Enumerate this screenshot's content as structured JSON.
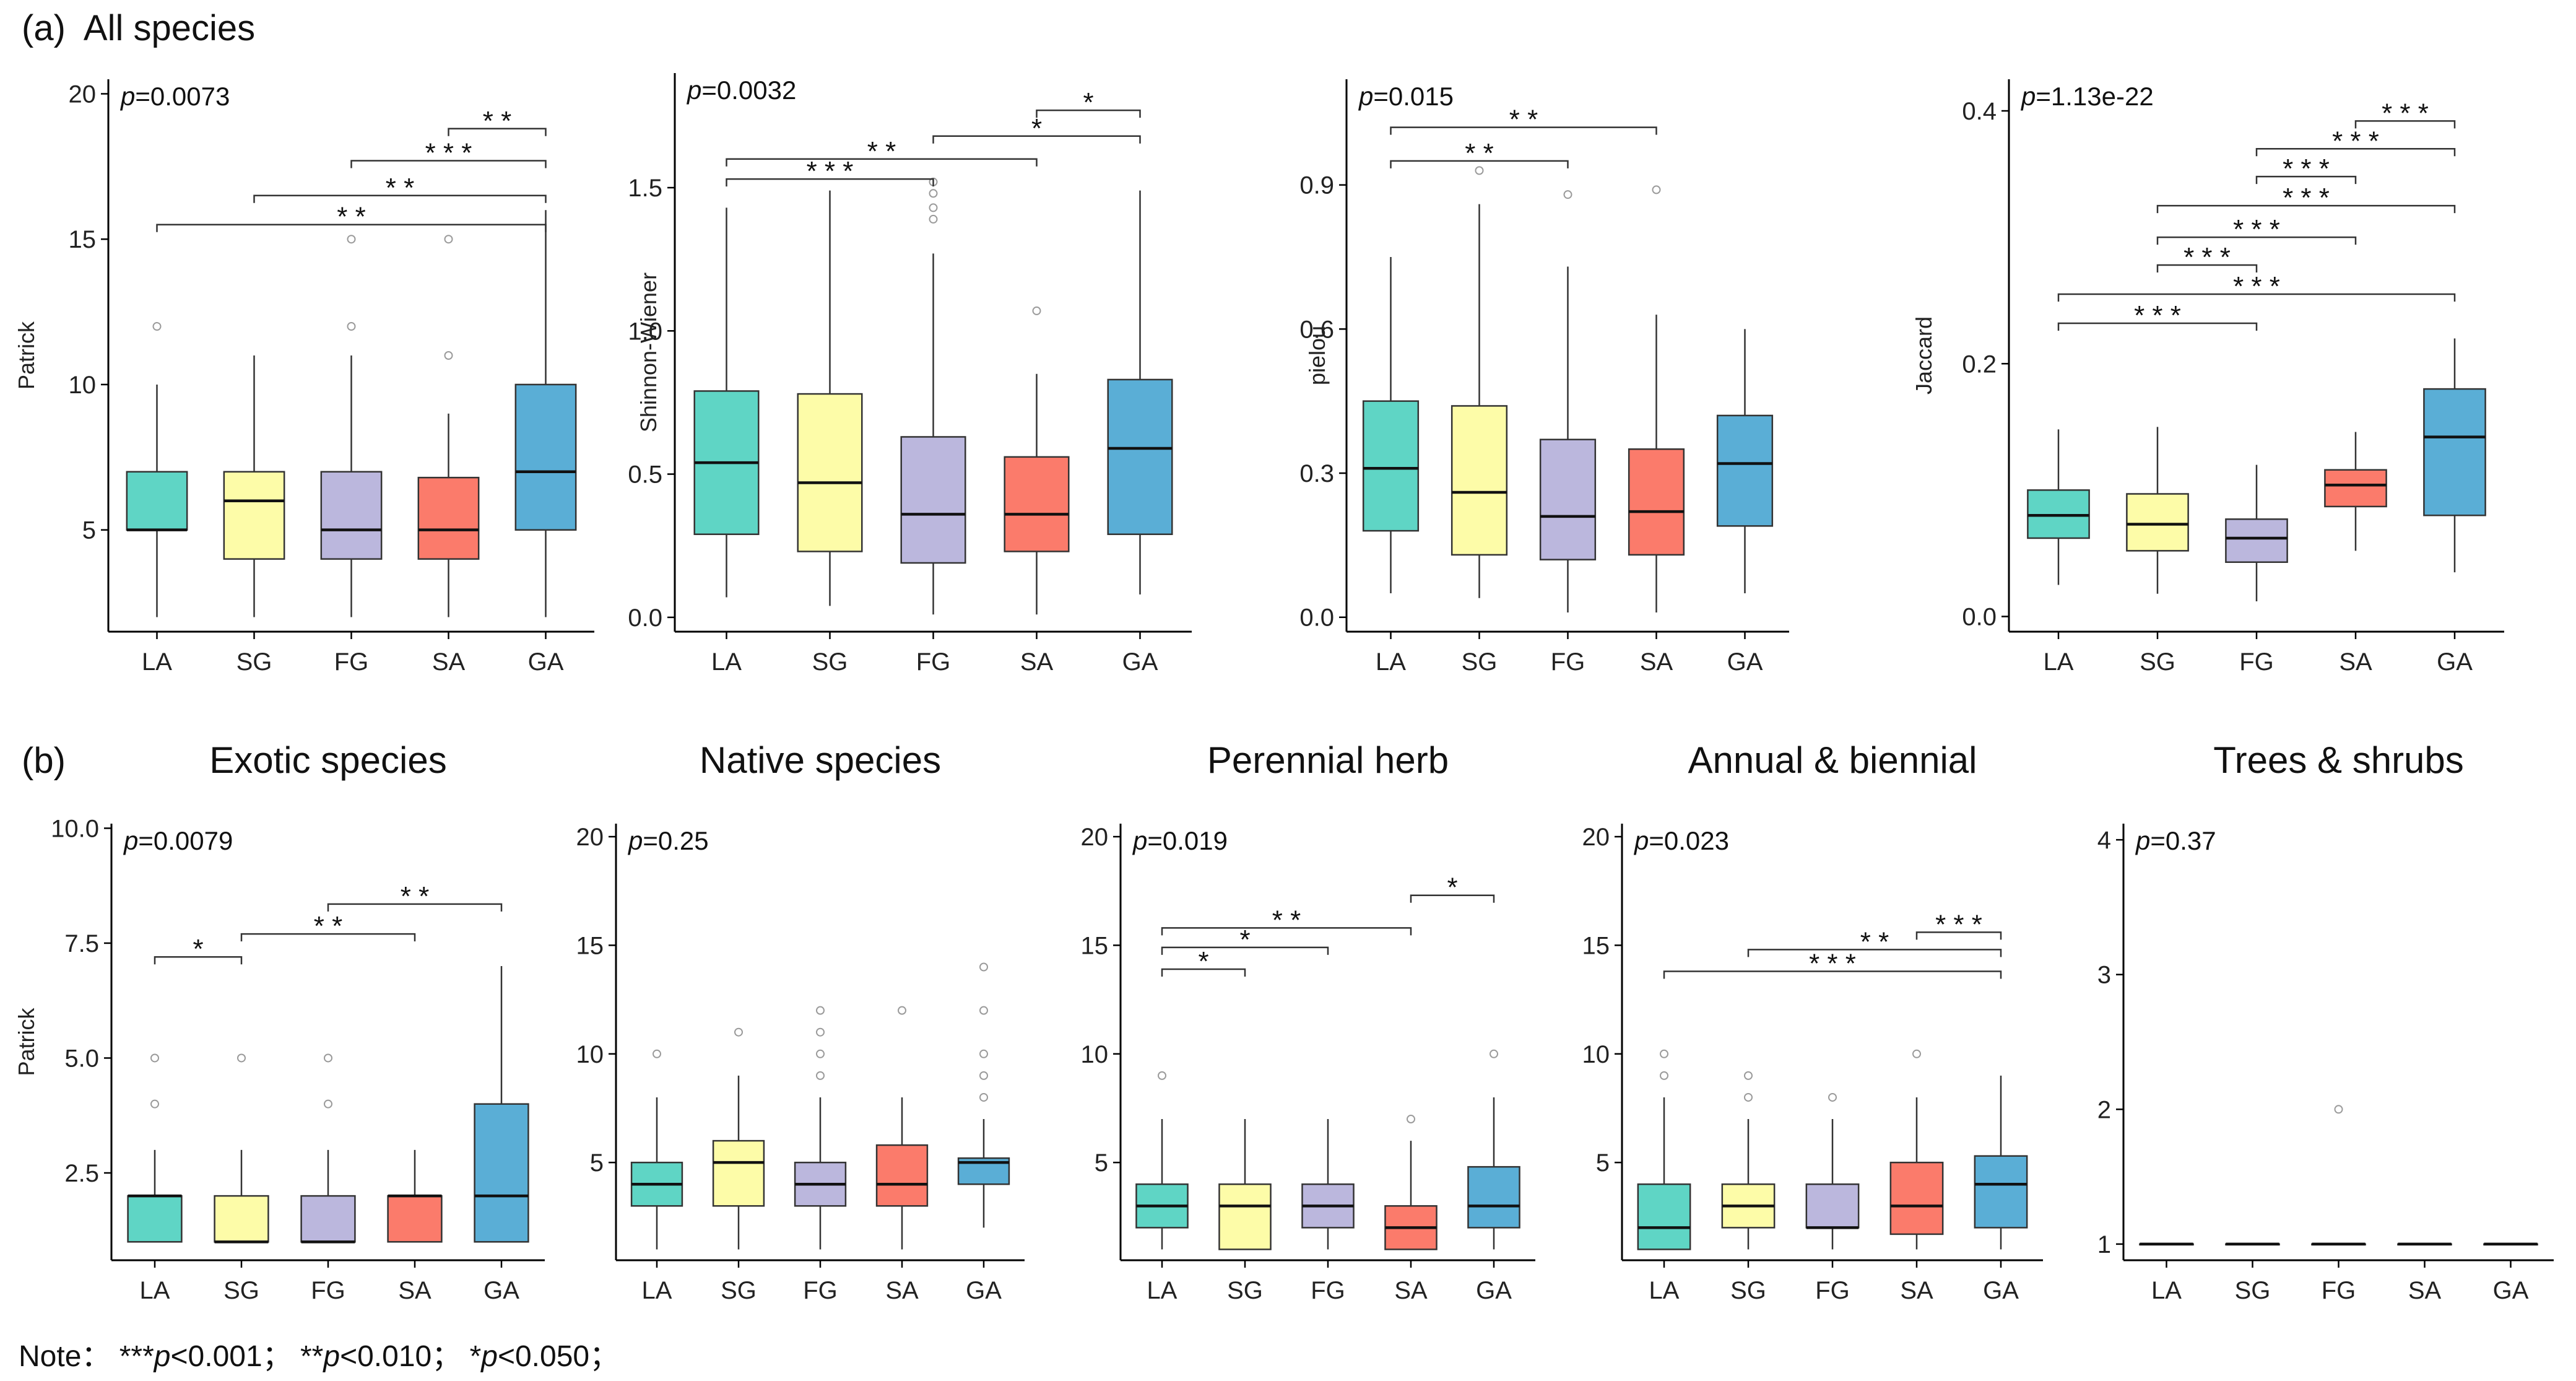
{
  "panel_a_label": "(a)",
  "panel_a_title": "All species",
  "panel_b_label": "(b)",
  "note": {
    "prefix": "Note：",
    "items": [
      {
        "stars": "***",
        "p": "p",
        "rest": "<0.001；"
      },
      {
        "stars": "**",
        "p": "p",
        "rest": "<0.010；"
      },
      {
        "stars": "*",
        "p": "p",
        "rest": "<0.050；"
      }
    ]
  },
  "colors": {
    "LA": "#5fd5c5",
    "SG": "#fdfca8",
    "FG": "#bbb7dd",
    "SA": "#fb7b6b",
    "GA": "#5aaed6"
  },
  "chart_data": [
    {
      "type": "box",
      "panel": "a",
      "title": "",
      "ylabel": "Patrick",
      "pval": "p=0.0073",
      "categories": [
        "LA",
        "SG",
        "FG",
        "SA",
        "GA"
      ],
      "ylim": [
        1.5,
        20.5
      ],
      "yticks": [
        5,
        10,
        15,
        20
      ],
      "ytick_labels": [
        "5",
        "10",
        "15",
        "20"
      ],
      "boxes": [
        {
          "min": 2,
          "q1": 5,
          "median": 5,
          "q3": 7,
          "max": 10,
          "outliers": [
            12
          ]
        },
        {
          "min": 2,
          "q1": 4,
          "median": 6,
          "q3": 7,
          "max": 11,
          "outliers": []
        },
        {
          "min": 2,
          "q1": 4,
          "median": 5,
          "q3": 7,
          "max": 11,
          "outliers": [
            12,
            15
          ]
        },
        {
          "min": 2,
          "q1": 4,
          "median": 5,
          "q3": 6.8,
          "max": 9,
          "outliers": [
            11,
            15
          ]
        },
        {
          "min": 2,
          "q1": 5,
          "median": 7,
          "q3": 10,
          "max": 16,
          "outliers": []
        }
      ],
      "brackets": [
        {
          "from": "SA",
          "to": "GA",
          "y": 18.8,
          "label": "* *"
        },
        {
          "from": "FG",
          "to": "GA",
          "y": 17.7,
          "label": "* * *"
        },
        {
          "from": "SG",
          "to": "GA",
          "y": 16.5,
          "label": "* *"
        },
        {
          "from": "LA",
          "to": "GA",
          "y": 15.5,
          "label": "* *"
        }
      ]
    },
    {
      "type": "box",
      "panel": "a",
      "title": "",
      "ylabel": "Shinnon-Wiener",
      "pval": "p=0.0032",
      "categories": [
        "LA",
        "SG",
        "FG",
        "SA",
        "GA"
      ],
      "ylim": [
        -0.05,
        1.9
      ],
      "yticks": [
        0,
        0.5,
        1.0,
        1.5
      ],
      "ytick_labels": [
        "0.0",
        "0.5",
        "1.0",
        "1.5"
      ],
      "boxes": [
        {
          "min": 0.07,
          "q1": 0.29,
          "median": 0.54,
          "q3": 0.79,
          "max": 1.43,
          "outliers": []
        },
        {
          "min": 0.04,
          "q1": 0.23,
          "median": 0.47,
          "q3": 0.78,
          "max": 1.49,
          "outliers": []
        },
        {
          "min": 0.01,
          "q1": 0.19,
          "median": 0.36,
          "q3": 0.63,
          "max": 1.27,
          "outliers": [
            1.39,
            1.43,
            1.48,
            1.52
          ]
        },
        {
          "min": 0.01,
          "q1": 0.23,
          "median": 0.36,
          "q3": 0.56,
          "max": 0.85,
          "outliers": [
            1.07
          ]
        },
        {
          "min": 0.08,
          "q1": 0.29,
          "median": 0.59,
          "q3": 0.83,
          "max": 1.49,
          "outliers": []
        }
      ],
      "brackets": [
        {
          "from": "SA",
          "to": "GA",
          "y": 1.77,
          "label": "*"
        },
        {
          "from": "FG",
          "to": "GA",
          "y": 1.68,
          "label": "*"
        },
        {
          "from": "LA",
          "to": "SA",
          "y": 1.6,
          "label": "* *"
        },
        {
          "from": "LA",
          "to": "FG",
          "y": 1.53,
          "label": "* * *"
        }
      ]
    },
    {
      "type": "box",
      "panel": "a",
      "title": "",
      "ylabel": "pielou",
      "pval": "p=0.015",
      "categories": [
        "LA",
        "SG",
        "FG",
        "SA",
        "GA"
      ],
      "ylim": [
        -0.03,
        1.12
      ],
      "yticks": [
        0,
        0.3,
        0.6,
        0.9
      ],
      "ytick_labels": [
        "0.0",
        "0.3",
        "0.6",
        "0.9"
      ],
      "boxes": [
        {
          "min": 0.05,
          "q1": 0.18,
          "median": 0.31,
          "q3": 0.45,
          "max": 0.75,
          "outliers": []
        },
        {
          "min": 0.04,
          "q1": 0.13,
          "median": 0.26,
          "q3": 0.44,
          "max": 0.86,
          "outliers": [
            0.93
          ]
        },
        {
          "min": 0.01,
          "q1": 0.12,
          "median": 0.21,
          "q3": 0.37,
          "max": 0.73,
          "outliers": [
            0.88
          ]
        },
        {
          "min": 0.01,
          "q1": 0.13,
          "median": 0.22,
          "q3": 0.35,
          "max": 0.63,
          "outliers": [
            0.89
          ]
        },
        {
          "min": 0.05,
          "q1": 0.19,
          "median": 0.32,
          "q3": 0.42,
          "max": 0.6,
          "outliers": []
        }
      ],
      "brackets": [
        {
          "from": "LA",
          "to": "SA",
          "y": 1.02,
          "label": "* *"
        },
        {
          "from": "LA",
          "to": "FG",
          "y": 0.95,
          "label": "* *"
        }
      ]
    },
    {
      "type": "box",
      "panel": "a",
      "title": "",
      "ylabel": "Jaccard",
      "pval": "p=1.13e-22",
      "categories": [
        "LA",
        "SG",
        "FG",
        "SA",
        "GA"
      ],
      "ylim": [
        -0.012,
        0.425
      ],
      "yticks": [
        0,
        0.2,
        0.4
      ],
      "ytick_labels": [
        "0.0",
        "0.2",
        "0.4"
      ],
      "boxes": [
        {
          "min": 0.025,
          "q1": 0.062,
          "median": 0.08,
          "q3": 0.1,
          "max": 0.148,
          "outliers": []
        },
        {
          "min": 0.018,
          "q1": 0.052,
          "median": 0.073,
          "q3": 0.097,
          "max": 0.15,
          "outliers": []
        },
        {
          "min": 0.012,
          "q1": 0.043,
          "median": 0.062,
          "q3": 0.077,
          "max": 0.12,
          "outliers": []
        },
        {
          "min": 0.052,
          "q1": 0.087,
          "median": 0.104,
          "q3": 0.116,
          "max": 0.146,
          "outliers": []
        },
        {
          "min": 0.035,
          "q1": 0.08,
          "median": 0.142,
          "q3": 0.18,
          "max": 0.22,
          "outliers": []
        }
      ],
      "brackets": [
        {
          "from": "SA",
          "to": "GA",
          "y": 0.392,
          "label": "* * *"
        },
        {
          "from": "FG",
          "to": "GA",
          "y": 0.37,
          "label": "* * *"
        },
        {
          "from": "FG",
          "to": "SA",
          "y": 0.348,
          "label": "* * *"
        },
        {
          "from": "SG",
          "to": "GA",
          "y": 0.325,
          "label": "* * *"
        },
        {
          "from": "SG",
          "to": "SA",
          "y": 0.3,
          "label": "* * *"
        },
        {
          "from": "SG",
          "to": "FG",
          "y": 0.278,
          "label": "* * *"
        },
        {
          "from": "LA",
          "to": "GA",
          "y": 0.255,
          "label": "* * *"
        },
        {
          "from": "LA",
          "to": "FG",
          "y": 0.232,
          "label": "* * *"
        }
      ]
    },
    {
      "type": "box",
      "panel": "b",
      "title": "Exotic species",
      "ylabel": "Patrick",
      "pval": "p=0.0079",
      "categories": [
        "LA",
        "SG",
        "FG",
        "SA",
        "GA"
      ],
      "ylim": [
        0.6,
        10.1
      ],
      "yticks": [
        2.5,
        5.0,
        7.5,
        10.0
      ],
      "ytick_labels": [
        "2.5",
        "5.0",
        "7.5",
        "10.0"
      ],
      "boxes": [
        {
          "min": 1,
          "q1": 1,
          "median": 2,
          "q3": 2,
          "max": 3,
          "outliers": [
            4,
            5
          ]
        },
        {
          "min": 1,
          "q1": 1,
          "median": 1,
          "q3": 2,
          "max": 3,
          "outliers": [
            5
          ]
        },
        {
          "min": 1,
          "q1": 1,
          "median": 1,
          "q3": 2,
          "max": 3,
          "outliers": [
            4,
            5
          ]
        },
        {
          "min": 1,
          "q1": 1,
          "median": 2,
          "q3": 2,
          "max": 3,
          "outliers": []
        },
        {
          "min": 1,
          "q1": 1,
          "median": 2,
          "q3": 4,
          "max": 7,
          "outliers": []
        }
      ],
      "brackets": [
        {
          "from": "FG",
          "to": "GA",
          "y": 8.35,
          "label": "* *"
        },
        {
          "from": "SG",
          "to": "SA",
          "y": 7.7,
          "label": "* *"
        },
        {
          "from": "LA",
          "to": "SG",
          "y": 7.2,
          "label": "*"
        }
      ]
    },
    {
      "type": "box",
      "panel": "b",
      "title": "Native species",
      "ylabel": "",
      "pval": "p=0.25",
      "categories": [
        "LA",
        "SG",
        "FG",
        "SA",
        "GA"
      ],
      "ylim": [
        0.5,
        20.6
      ],
      "yticks": [
        5,
        10,
        15,
        20
      ],
      "ytick_labels": [
        "5",
        "10",
        "15",
        "20"
      ],
      "boxes": [
        {
          "min": 1,
          "q1": 3,
          "median": 4,
          "q3": 5,
          "max": 8,
          "outliers": [
            10
          ]
        },
        {
          "min": 1,
          "q1": 3,
          "median": 5,
          "q3": 6,
          "max": 9,
          "outliers": [
            11
          ]
        },
        {
          "min": 1,
          "q1": 3,
          "median": 4,
          "q3": 5,
          "max": 8,
          "outliers": [
            9,
            10,
            11,
            12
          ]
        },
        {
          "min": 1,
          "q1": 3,
          "median": 4,
          "q3": 5.8,
          "max": 8,
          "outliers": [
            12
          ]
        },
        {
          "min": 2,
          "q1": 4,
          "median": 5,
          "q3": 5.2,
          "max": 7,
          "outliers": [
            8,
            9,
            10,
            12,
            14
          ]
        }
      ],
      "brackets": []
    },
    {
      "type": "box",
      "panel": "b",
      "title": "Perennial herb",
      "ylabel": "",
      "pval": "p=0.019",
      "categories": [
        "LA",
        "SG",
        "FG",
        "SA",
        "GA"
      ],
      "ylim": [
        0.5,
        20.6
      ],
      "yticks": [
        5,
        10,
        15,
        20
      ],
      "ytick_labels": [
        "5",
        "10",
        "15",
        "20"
      ],
      "boxes": [
        {
          "min": 1,
          "q1": 2,
          "median": 3,
          "q3": 4,
          "max": 7,
          "outliers": [
            9
          ]
        },
        {
          "min": 1,
          "q1": 1,
          "median": 3,
          "q3": 4,
          "max": 7,
          "outliers": []
        },
        {
          "min": 1,
          "q1": 2,
          "median": 3,
          "q3": 4,
          "max": 7,
          "outliers": []
        },
        {
          "min": 1,
          "q1": 1,
          "median": 2,
          "q3": 3,
          "max": 6,
          "outliers": [
            7
          ]
        },
        {
          "min": 1,
          "q1": 2,
          "median": 3,
          "q3": 4.8,
          "max": 8,
          "outliers": [
            10
          ]
        }
      ],
      "brackets": [
        {
          "from": "SA",
          "to": "GA",
          "y": 17.3,
          "label": "*"
        },
        {
          "from": "LA",
          "to": "SA",
          "y": 15.8,
          "label": "* *"
        },
        {
          "from": "LA",
          "to": "FG",
          "y": 14.9,
          "label": "*"
        },
        {
          "from": "LA",
          "to": "SG",
          "y": 13.9,
          "label": "*"
        }
      ]
    },
    {
      "type": "box",
      "panel": "b",
      "title": "Annual & biennial",
      "ylabel": "",
      "pval": "p=0.023",
      "categories": [
        "LA",
        "SG",
        "FG",
        "SA",
        "GA"
      ],
      "ylim": [
        0.5,
        20.6
      ],
      "yticks": [
        5,
        10,
        15,
        20
      ],
      "ytick_labels": [
        "5",
        "10",
        "15",
        "20"
      ],
      "boxes": [
        {
          "min": 1,
          "q1": 1,
          "median": 2,
          "q3": 4,
          "max": 8,
          "outliers": [
            9,
            10
          ]
        },
        {
          "min": 1,
          "q1": 2,
          "median": 3,
          "q3": 4,
          "max": 7,
          "outliers": [
            8,
            9
          ]
        },
        {
          "min": 1,
          "q1": 2,
          "median": 2,
          "q3": 4,
          "max": 7,
          "outliers": [
            8
          ]
        },
        {
          "min": 1,
          "q1": 1.7,
          "median": 3,
          "q3": 5,
          "max": 8,
          "outliers": [
            10
          ]
        },
        {
          "min": 1,
          "q1": 2,
          "median": 4,
          "q3": 5.3,
          "max": 9,
          "outliers": []
        }
      ],
      "brackets": [
        {
          "from": "SA",
          "to": "GA",
          "y": 15.6,
          "label": "* * *"
        },
        {
          "from": "SG",
          "to": "GA",
          "y": 14.8,
          "label": "* *"
        },
        {
          "from": "LA",
          "to": "GA",
          "y": 13.8,
          "label": "* * *"
        }
      ]
    },
    {
      "type": "box",
      "panel": "b",
      "title": "Trees & shrubs",
      "ylabel": "",
      "pval": "p=0.37",
      "categories": [
        "LA",
        "SG",
        "FG",
        "SA",
        "GA"
      ],
      "ylim": [
        0.88,
        4.12
      ],
      "yticks": [
        1,
        2,
        3,
        4
      ],
      "ytick_labels": [
        "1",
        "2",
        "3",
        "4"
      ],
      "boxes": [
        {
          "min": 1,
          "q1": 1,
          "median": 1,
          "q3": 1,
          "max": 1,
          "outliers": []
        },
        {
          "min": 1,
          "q1": 1,
          "median": 1,
          "q3": 1,
          "max": 1,
          "outliers": []
        },
        {
          "min": 1,
          "q1": 1,
          "median": 1,
          "q3": 1,
          "max": 1,
          "outliers": [
            2
          ]
        },
        {
          "min": 1,
          "q1": 1,
          "median": 1,
          "q3": 1,
          "max": 1,
          "outliers": []
        },
        {
          "min": 1,
          "q1": 1,
          "median": 1,
          "q3": 1,
          "max": 1,
          "outliers": []
        }
      ],
      "brackets": []
    }
  ]
}
